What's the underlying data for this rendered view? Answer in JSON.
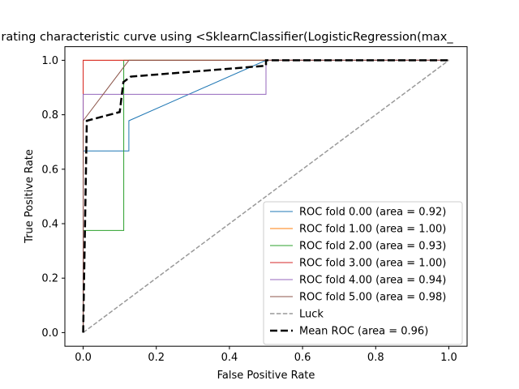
{
  "chart_data": {
    "type": "line",
    "title": "rating characteristic curve using <SklearnClassifier(LogisticRegression(max_",
    "xlabel": "False Positive Rate",
    "ylabel": "True Positive Rate",
    "xlim": [
      -0.05,
      1.05
    ],
    "ylim": [
      -0.05,
      1.05
    ],
    "xticks": [
      "0.0",
      "0.2",
      "0.4",
      "0.6",
      "0.8",
      "1.0"
    ],
    "yticks": [
      "0.0",
      "0.2",
      "0.4",
      "0.6",
      "0.8",
      "1.0"
    ],
    "grid": false,
    "legend_position": "lower right",
    "series": [
      {
        "name": "ROC fold 0.00 (area = 0.92)",
        "color": "#1f77b4",
        "style": "solid",
        "x": [
          0,
          0,
          0.125,
          0.125,
          0.5,
          0.5,
          1.0
        ],
        "y": [
          0,
          0.667,
          0.667,
          0.778,
          1.0,
          1.0,
          1.0
        ]
      },
      {
        "name": "ROC fold 1.00 (area = 1.00)",
        "color": "#ff7f0e",
        "style": "solid",
        "x": [
          0,
          0,
          1.0
        ],
        "y": [
          0,
          1.0,
          1.0
        ]
      },
      {
        "name": "ROC fold 2.00 (area = 0.93)",
        "color": "#2ca02c",
        "style": "solid",
        "x": [
          0,
          0,
          0.111,
          0.111,
          1.0
        ],
        "y": [
          0,
          0.375,
          0.375,
          1.0,
          1.0
        ]
      },
      {
        "name": "ROC fold 3.00 (area = 1.00)",
        "color": "#d62728",
        "style": "solid",
        "x": [
          0,
          0,
          1.0
        ],
        "y": [
          0,
          1.0,
          1.0
        ]
      },
      {
        "name": "ROC fold 4.00 (area = 0.94)",
        "color": "#9467bd",
        "style": "solid",
        "x": [
          0,
          0,
          0.5,
          0.5,
          1.0
        ],
        "y": [
          0,
          0.875,
          0.875,
          1.0,
          1.0
        ]
      },
      {
        "name": "ROC fold 5.00 (area = 0.98)",
        "color": "#8c564b",
        "style": "solid",
        "x": [
          0,
          0,
          0.125,
          1.0
        ],
        "y": [
          0,
          0.778,
          1.0,
          1.0
        ]
      },
      {
        "name": "Luck",
        "color": "#999999",
        "style": "dashed",
        "x": [
          0,
          1.0
        ],
        "y": [
          0,
          1.0
        ]
      },
      {
        "name": "Mean ROC (area = 0.96)",
        "color": "#000000",
        "style": "bold-dashed",
        "x": [
          0,
          0.01,
          0.1,
          0.11,
          0.13,
          0.5,
          0.5,
          1.0
        ],
        "y": [
          0,
          0.778,
          0.81,
          0.92,
          0.94,
          0.98,
          1.0,
          1.0
        ]
      }
    ]
  }
}
